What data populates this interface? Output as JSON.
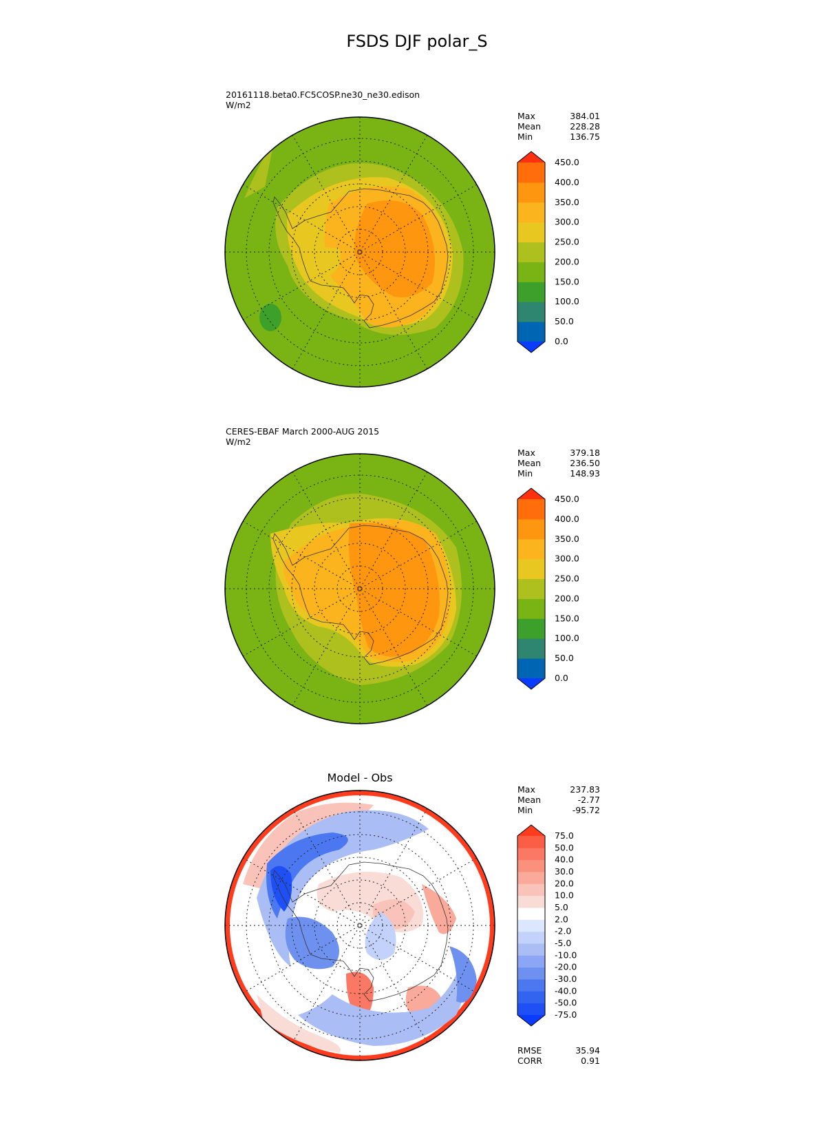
{
  "figure": {
    "title": "FSDS DJF polar_S"
  },
  "panels": [
    {
      "id": "test",
      "header_lines": [
        "20161118.beta0.FC5COSP.ne30_ne30.edison",
        "W/m2"
      ],
      "subtitle": "",
      "stats": [
        {
          "label": "Max",
          "value": "384.01"
        },
        {
          "label": "Mean",
          "value": "228.28"
        },
        {
          "label": "Min",
          "value": "136.75"
        }
      ],
      "colorbar": {
        "colors": [
          "#0a3cff",
          "#0066b4",
          "#2e8570",
          "#3ca02a",
          "#7ab414",
          "#aec01e",
          "#e8c820",
          "#fcb41e",
          "#ff9610",
          "#ff6e0a",
          "#ff3010"
        ],
        "tick_labels": [
          "0.0",
          "50.0",
          "100.0",
          "150.0",
          "200.0",
          "250.0",
          "300.0",
          "350.0",
          "400.0",
          "450.0"
        ]
      },
      "footer_stats": []
    },
    {
      "id": "reference",
      "header_lines": [
        "CERES-EBAF March 2000-AUG 2015",
        "W/m2"
      ],
      "subtitle": "",
      "stats": [
        {
          "label": "Max",
          "value": "379.18"
        },
        {
          "label": "Mean",
          "value": "236.50"
        },
        {
          "label": "Min",
          "value": "148.93"
        }
      ],
      "colorbar": {
        "colors": [
          "#0a3cff",
          "#0066b4",
          "#2e8570",
          "#3ca02a",
          "#7ab414",
          "#aec01e",
          "#e8c820",
          "#fcb41e",
          "#ff9610",
          "#ff6e0a",
          "#ff3010"
        ],
        "tick_labels": [
          "0.0",
          "50.0",
          "100.0",
          "150.0",
          "200.0",
          "250.0",
          "300.0",
          "350.0",
          "400.0",
          "450.0"
        ]
      },
      "footer_stats": []
    },
    {
      "id": "diff",
      "header_lines": [],
      "subtitle": "Model - Obs",
      "stats": [
        {
          "label": "Max",
          "value": "237.83"
        },
        {
          "label": "Mean",
          "value": "-2.77"
        },
        {
          "label": "Min",
          "value": "-95.72"
        }
      ],
      "colorbar": {
        "colors": [
          "#0a3cff",
          "#1e50f5",
          "#3264f0",
          "#4b78f0",
          "#6e91f0",
          "#8ca5f5",
          "#aabef5",
          "#c3d2fa",
          "#dce6ff",
          "#ffffff",
          "#fadcd7",
          "#fac3b9",
          "#faaa9b",
          "#fa917d",
          "#fa7864",
          "#fa5f46",
          "#ff3c1e"
        ],
        "tick_labels": [
          "-75.0",
          "-50.0",
          "-40.0",
          "-30.0",
          "-20.0",
          "-10.0",
          "-5.0",
          "-2.0",
          "2.0",
          "5.0",
          "10.0",
          "20.0",
          "30.0",
          "40.0",
          "50.0",
          "75.0"
        ]
      },
      "footer_stats": [
        {
          "label": "RMSE",
          "value": "35.94"
        },
        {
          "label": "CORR",
          "value": "0.91"
        }
      ]
    }
  ],
  "chart_data": [
    {
      "type": "heatmap",
      "title": "20161118.beta0.FC5COSP.ne30_ne30.edison",
      "units": "W/m2",
      "projection": "south-polar-stereographic",
      "levels": [
        0,
        50,
        100,
        150,
        200,
        250,
        300,
        350,
        400,
        450
      ],
      "extend": "both",
      "stats": {
        "max": 384.01,
        "mean": 228.28,
        "min": 136.75
      }
    },
    {
      "type": "heatmap",
      "title": "CERES-EBAF March 2000-AUG 2015",
      "units": "W/m2",
      "projection": "south-polar-stereographic",
      "levels": [
        0,
        50,
        100,
        150,
        200,
        250,
        300,
        350,
        400,
        450
      ],
      "extend": "both",
      "stats": {
        "max": 379.18,
        "mean": 236.5,
        "min": 148.93
      }
    },
    {
      "type": "heatmap",
      "title": "Model - Obs",
      "projection": "south-polar-stereographic",
      "levels": [
        -75,
        -50,
        -40,
        -30,
        -20,
        -10,
        -5,
        -2,
        2,
        5,
        10,
        20,
        30,
        40,
        50,
        75
      ],
      "extend": "both",
      "stats": {
        "max": 237.83,
        "mean": -2.77,
        "min": -95.72,
        "rmse": 35.94,
        "corr": 0.91
      }
    }
  ]
}
